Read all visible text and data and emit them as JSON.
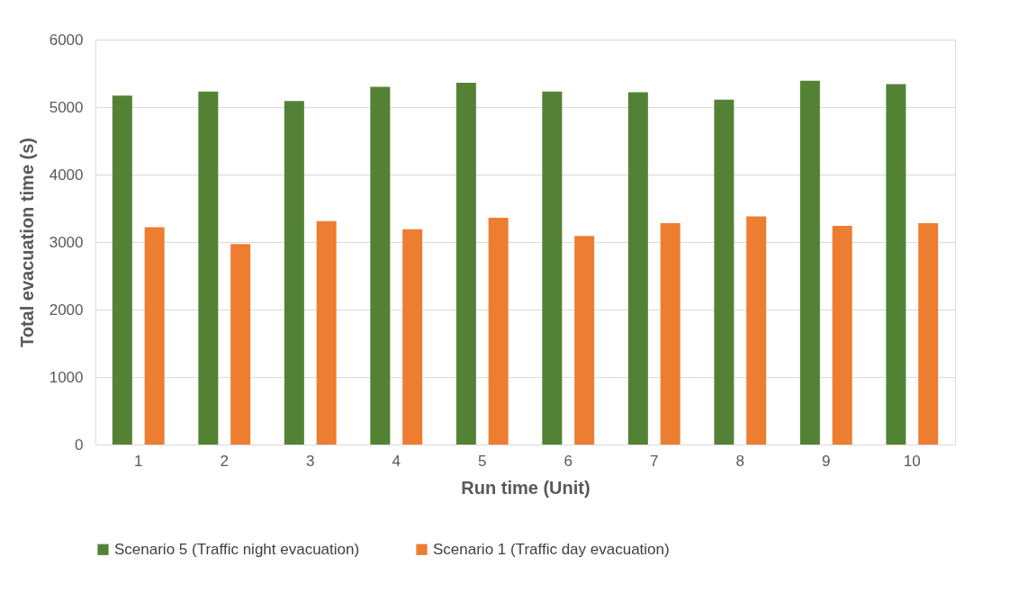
{
  "chart_data": {
    "type": "bar",
    "xlabel": "Run time (Unit)",
    "ylabel": "Total evacuation time (s)",
    "categories": [
      "1",
      "2",
      "3",
      "4",
      "5",
      "6",
      "7",
      "8",
      "9",
      "10"
    ],
    "series": [
      {
        "name": "Scenario 5 (Traffic night evacuation)",
        "color": "#548235",
        "values": [
          5170,
          5230,
          5090,
          5300,
          5360,
          5230,
          5220,
          5110,
          5390,
          5340
        ]
      },
      {
        "name": "Scenario 1 (Traffic day evacuation)",
        "color": "#ed7d31",
        "values": [
          3220,
          2970,
          3310,
          3190,
          3360,
          3090,
          3280,
          3380,
          3240,
          3280
        ]
      }
    ],
    "ylim": [
      0,
      6000
    ],
    "yticks": [
      0,
      1000,
      2000,
      3000,
      4000,
      5000,
      6000
    ],
    "grid": "y",
    "legend": "bottom"
  }
}
